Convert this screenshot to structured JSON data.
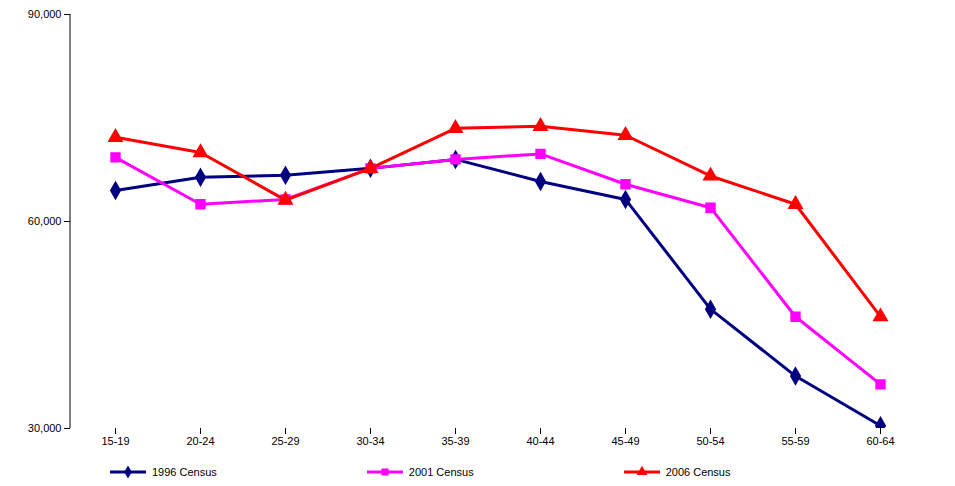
{
  "chart_data": {
    "type": "line",
    "categories": [
      "15-19",
      "20-24",
      "25-29",
      "30-34",
      "35-39",
      "40-44",
      "45-49",
      "50-54",
      "55-59",
      "60-64"
    ],
    "series": [
      {
        "name": "1996 Census",
        "color": "#000080",
        "marker": "diamond",
        "values": [
          64500,
          66400,
          66700,
          67700,
          69000,
          65800,
          63200,
          47300,
          37600,
          30400
        ]
      },
      {
        "name": "2001 Census",
        "color": "#ff00ff",
        "marker": "square",
        "values": [
          69300,
          62500,
          63200,
          67700,
          69000,
          69800,
          65400,
          62000,
          46200,
          36400
        ]
      },
      {
        "name": "2006 Census",
        "color": "#ff0000",
        "marker": "triangle",
        "values": [
          72200,
          70000,
          63100,
          67700,
          73500,
          73800,
          72500,
          66600,
          62500,
          46200
        ]
      }
    ],
    "ylim": [
      30000,
      90000
    ],
    "yticks": [
      {
        "value": 30000,
        "label": "30,000"
      },
      {
        "value": 60000,
        "label": "60,000"
      },
      {
        "value": 90000,
        "label": "90,000"
      }
    ],
    "grid": false,
    "legend": "bottom"
  }
}
